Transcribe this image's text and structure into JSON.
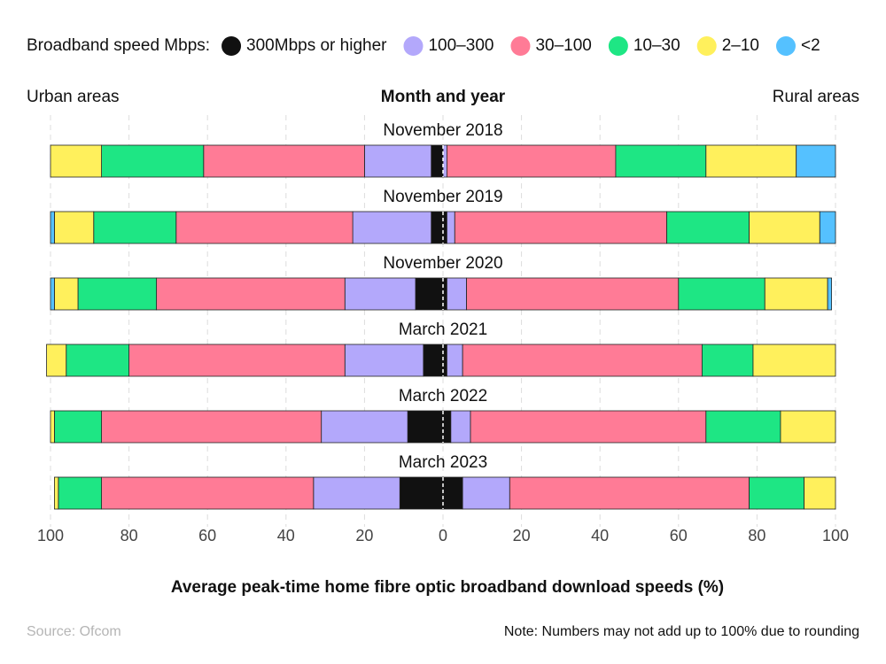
{
  "chart_data": {
    "type": "diverging-bar",
    "legend_title": "Broadband speed Mbps:",
    "left_label": "Urban areas",
    "center_label": "Month and year",
    "right_label": "Rural areas",
    "xlabel": "Average peak-time home fibre optic broadband download speeds (%)",
    "source": "Source: Ofcom",
    "note": "Note: Numbers may not add up to 100% due to rounding",
    "categories": [
      "November 2018",
      "November 2019",
      "November 2020",
      "March 2021",
      "March 2022",
      "March 2023"
    ],
    "series": [
      {
        "name": "300Mbps or higher",
        "color": "#111111",
        "urban": [
          3,
          3,
          7,
          5,
          9,
          11
        ],
        "rural": [
          0,
          1,
          1,
          1,
          2,
          5
        ]
      },
      {
        "name": "100–300",
        "color": "#b3a8fb",
        "urban": [
          17,
          20,
          18,
          20,
          22,
          22
        ],
        "rural": [
          1,
          2,
          5,
          4,
          5,
          12
        ]
      },
      {
        "name": "30–100",
        "color": "#ff7b96",
        "urban": [
          41,
          45,
          48,
          55,
          56,
          54
        ],
        "rural": [
          43,
          54,
          54,
          61,
          60,
          61
        ]
      },
      {
        "name": "10–30",
        "color": "#1ee684",
        "urban": [
          26,
          21,
          20,
          16,
          12,
          11
        ],
        "rural": [
          23,
          21,
          22,
          13,
          19,
          14
        ]
      },
      {
        "name": "2–10",
        "color": "#fff05c",
        "urban": [
          13,
          10,
          6,
          5,
          1,
          1
        ],
        "rural": [
          23,
          18,
          16,
          21,
          14,
          8
        ]
      },
      {
        "name": "<2",
        "color": "#55c1ff",
        "urban": [
          0,
          1,
          1,
          0,
          0,
          0
        ],
        "rural": [
          10,
          4,
          1,
          0,
          0,
          0
        ]
      }
    ],
    "xlim": [
      -100,
      100
    ],
    "xticks": [
      {
        "value": -100,
        "label": "100"
      },
      {
        "value": -80,
        "label": "80"
      },
      {
        "value": -60,
        "label": "60"
      },
      {
        "value": -40,
        "label": "40"
      },
      {
        "value": -20,
        "label": "20"
      },
      0,
      20,
      40,
      60,
      80,
      100
    ],
    "grid": true
  }
}
